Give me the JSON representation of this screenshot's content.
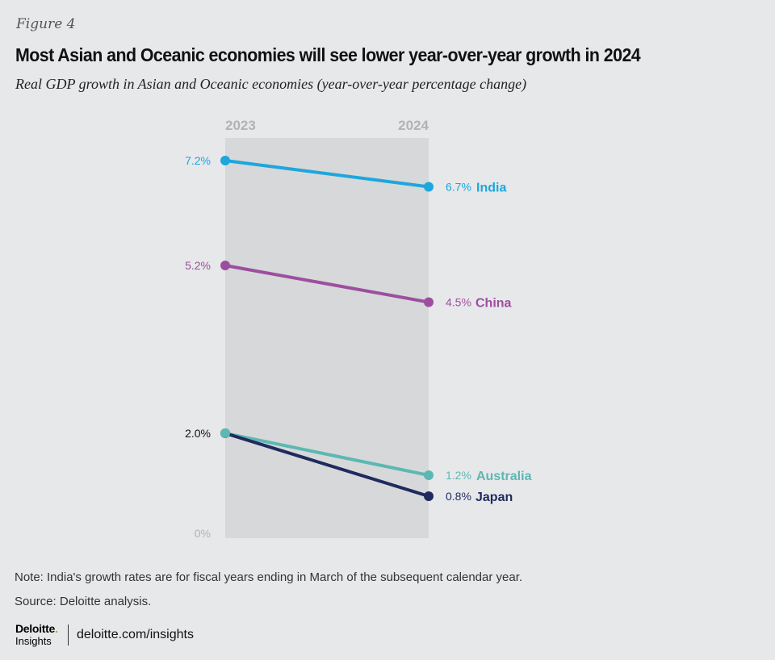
{
  "figure_label": "Figure 4",
  "title": "Most Asian and Oceanic economies will see lower year-over-year growth in 2024",
  "subtitle": "Real GDP growth in Asian and Oceanic economies (year-over-year percentage change)",
  "chart_data": {
    "type": "line",
    "title": "Most Asian and Oceanic economies will see lower year-over-year growth in 2024",
    "subtitle": "Real GDP growth in Asian and Oceanic economies (year-over-year percentage change)",
    "x": [
      "2023",
      "2024"
    ],
    "ylim": [
      0,
      7.5
    ],
    "axis_labels": [
      {
        "value": 0,
        "label": "0%"
      }
    ],
    "start_labels": [
      {
        "value": 7.2,
        "label": "7.2%",
        "color": "#1ea6dd"
      },
      {
        "value": 5.2,
        "label": "5.2%",
        "color": "#9c4f9f"
      },
      {
        "value": 2.0,
        "label": "2.0%",
        "color": "#111111"
      }
    ],
    "series": [
      {
        "name": "India",
        "values": [
          7.2,
          6.7
        ],
        "end_label": "6.7%",
        "color": "#1ea6dd"
      },
      {
        "name": "China",
        "values": [
          5.2,
          4.5
        ],
        "end_label": "4.5%",
        "color": "#9c4f9f"
      },
      {
        "name": "Japan",
        "values": [
          2.0,
          0.8
        ],
        "end_label": "0.8%",
        "color": "#1f2a5e"
      },
      {
        "name": "Australia",
        "values": [
          2.0,
          1.2
        ],
        "end_label": "1.2%",
        "color": "#5cb8b2"
      }
    ],
    "grid": false,
    "legend": "direct-labels-right"
  },
  "note": "Note: India's growth rates are for fiscal years ending in March of the subsequent calendar year.",
  "source": "Source: Deloitte analysis.",
  "logo": {
    "line1": "Deloitte",
    "dot": ".",
    "line2": "Insights"
  },
  "site": "deloitte.com/insights"
}
